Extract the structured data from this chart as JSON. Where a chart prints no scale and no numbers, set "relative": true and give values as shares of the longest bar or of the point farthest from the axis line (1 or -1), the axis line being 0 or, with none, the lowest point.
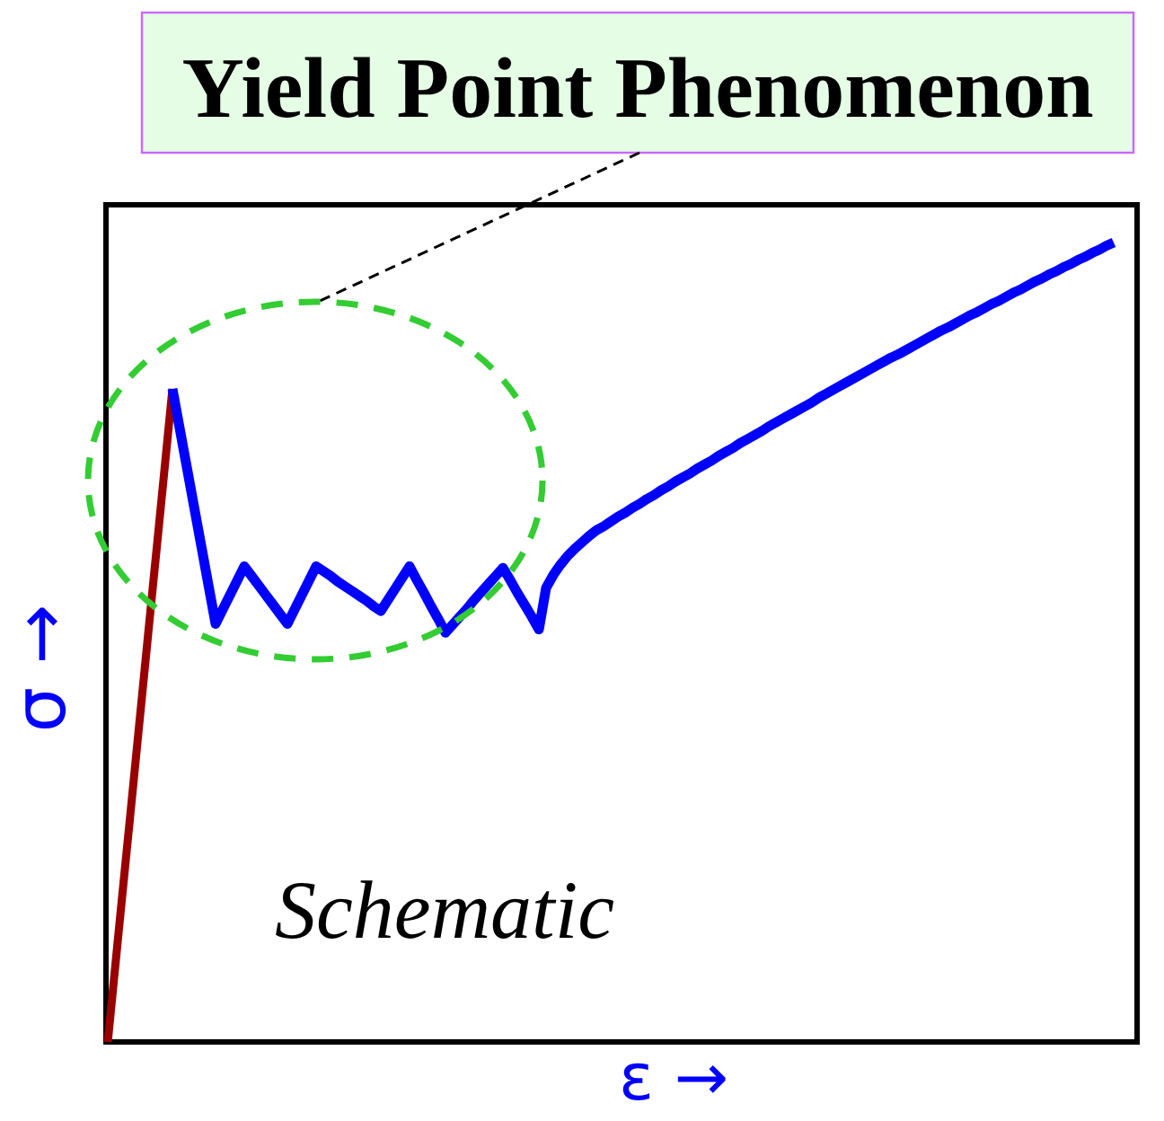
{
  "chart_data": {
    "type": "line",
    "title": "Yield Point Phenomenon",
    "xlabel": "ε →",
    "ylabel": "σ →",
    "annotations": [
      "Schematic"
    ],
    "relative": true,
    "categories": [
      null,
      null,
      null,
      null,
      null,
      null,
      null,
      null,
      null,
      null,
      null,
      null,
      null,
      null,
      null,
      null,
      null,
      null,
      null,
      null,
      null,
      null,
      null,
      null,
      null,
      null,
      null,
      null,
      null,
      null,
      null,
      null,
      null,
      null,
      null,
      null,
      null,
      null,
      null,
      null,
      null,
      null,
      null,
      null,
      null,
      null,
      null,
      null,
      null,
      null,
      null,
      null,
      null,
      null,
      null,
      null,
      null,
      null,
      null,
      null,
      null,
      null,
      null,
      null,
      null,
      null,
      null,
      null,
      null,
      null,
      null,
      null,
      null,
      null,
      null,
      null,
      null,
      null,
      null,
      null,
      null,
      null,
      null,
      null,
      null,
      null,
      null,
      null,
      null,
      null,
      null,
      null,
      null,
      null,
      null,
      null,
      null,
      null,
      null,
      null,
      null,
      null,
      null,
      null,
      null,
      null,
      null,
      null,
      null,
      null,
      null,
      null,
      null,
      null,
      null,
      null,
      null,
      null,
      null,
      null,
      null,
      null,
      null,
      null,
      null,
      null,
      null,
      null,
      null,
      null,
      null,
      null,
      null,
      null,
      null,
      null,
      null,
      null,
      null,
      null,
      null
    ],
    "series": [
      {
        "color": "#990000",
        "values": [
          0,
          0.091,
          0.182,
          0.272,
          0.363,
          0.454,
          0.545,
          0.635,
          0.726,
          0.817,
          null,
          null,
          null,
          null,
          null,
          null,
          null,
          null,
          null,
          null,
          null,
          null,
          null,
          null,
          null,
          null,
          null,
          null,
          null,
          null,
          null,
          null,
          null,
          null,
          null,
          null,
          null,
          null,
          null,
          null,
          null,
          null,
          null,
          null,
          null,
          null,
          null,
          null,
          null,
          null,
          null,
          null,
          null,
          null,
          null,
          null,
          null,
          null,
          null,
          null,
          null,
          null,
          null,
          null,
          null,
          null,
          null,
          null,
          null,
          null,
          null,
          null,
          null,
          null,
          null,
          null,
          null,
          null,
          null,
          null,
          null,
          null,
          null,
          null,
          null,
          null,
          null,
          null,
          null,
          null,
          null,
          null,
          null,
          null,
          null,
          null,
          null,
          null,
          null,
          null,
          null,
          null,
          null,
          null,
          null,
          null,
          null,
          null,
          null,
          null,
          null,
          null,
          null,
          null,
          null,
          null,
          null,
          null,
          null,
          null,
          null,
          null,
          null,
          null,
          null,
          null,
          null,
          null,
          null,
          null,
          null,
          null,
          null,
          null,
          null,
          null,
          null,
          null,
          null,
          null,
          null
        ]
      },
      {
        "color": "#0000ff",
        "values": [
          null,
          null,
          null,
          null,
          null,
          null,
          null,
          null,
          null,
          0.817,
          0.768,
          0.719,
          0.67,
          0.621,
          0.572,
          0.523,
          0.541,
          0.559,
          0.577,
          0.595,
          0.583,
          0.571,
          0.559,
          0.547,
          0.535,
          0.523,
          0.541,
          0.559,
          0.577,
          0.595,
          0.589,
          0.583,
          0.576,
          0.57,
          0.564,
          0.558,
          0.552,
          0.545,
          0.539,
          0.553,
          0.567,
          0.581,
          0.595,
          0.578,
          0.562,
          0.545,
          0.529,
          0.512,
          0.522,
          0.532,
          0.542,
          0.553,
          0.563,
          0.573,
          0.583,
          0.593,
          0.578,
          0.562,
          0.547,
          0.532,
          0.516,
          0.568,
          0.584,
          0.597,
          0.608,
          0.617,
          0.625,
          0.633,
          0.64,
          0.645,
          0.651,
          0.657,
          0.662,
          0.668,
          0.673,
          0.679,
          0.684,
          0.69,
          0.695,
          0.701,
          0.706,
          0.711,
          0.717,
          0.722,
          0.727,
          0.733,
          0.738,
          0.743,
          0.749,
          0.754,
          0.759,
          0.764,
          0.77,
          0.775,
          0.78,
          0.785,
          0.79,
          0.795,
          0.8,
          0.806,
          0.811,
          0.816,
          0.821,
          0.826,
          0.831,
          0.836,
          0.841,
          0.846,
          0.851,
          0.856,
          0.86,
          0.865,
          0.87,
          0.875,
          0.88,
          0.885,
          0.89,
          0.894,
          0.899,
          0.904,
          0.909,
          0.913,
          0.918,
          0.923,
          0.927,
          0.932,
          0.937,
          0.941,
          0.946,
          0.951,
          0.955,
          0.96,
          0.964,
          0.969,
          0.973,
          0.978,
          0.982,
          0.987,
          0.991,
          0.996,
          1
        ]
      }
    ]
  }
}
